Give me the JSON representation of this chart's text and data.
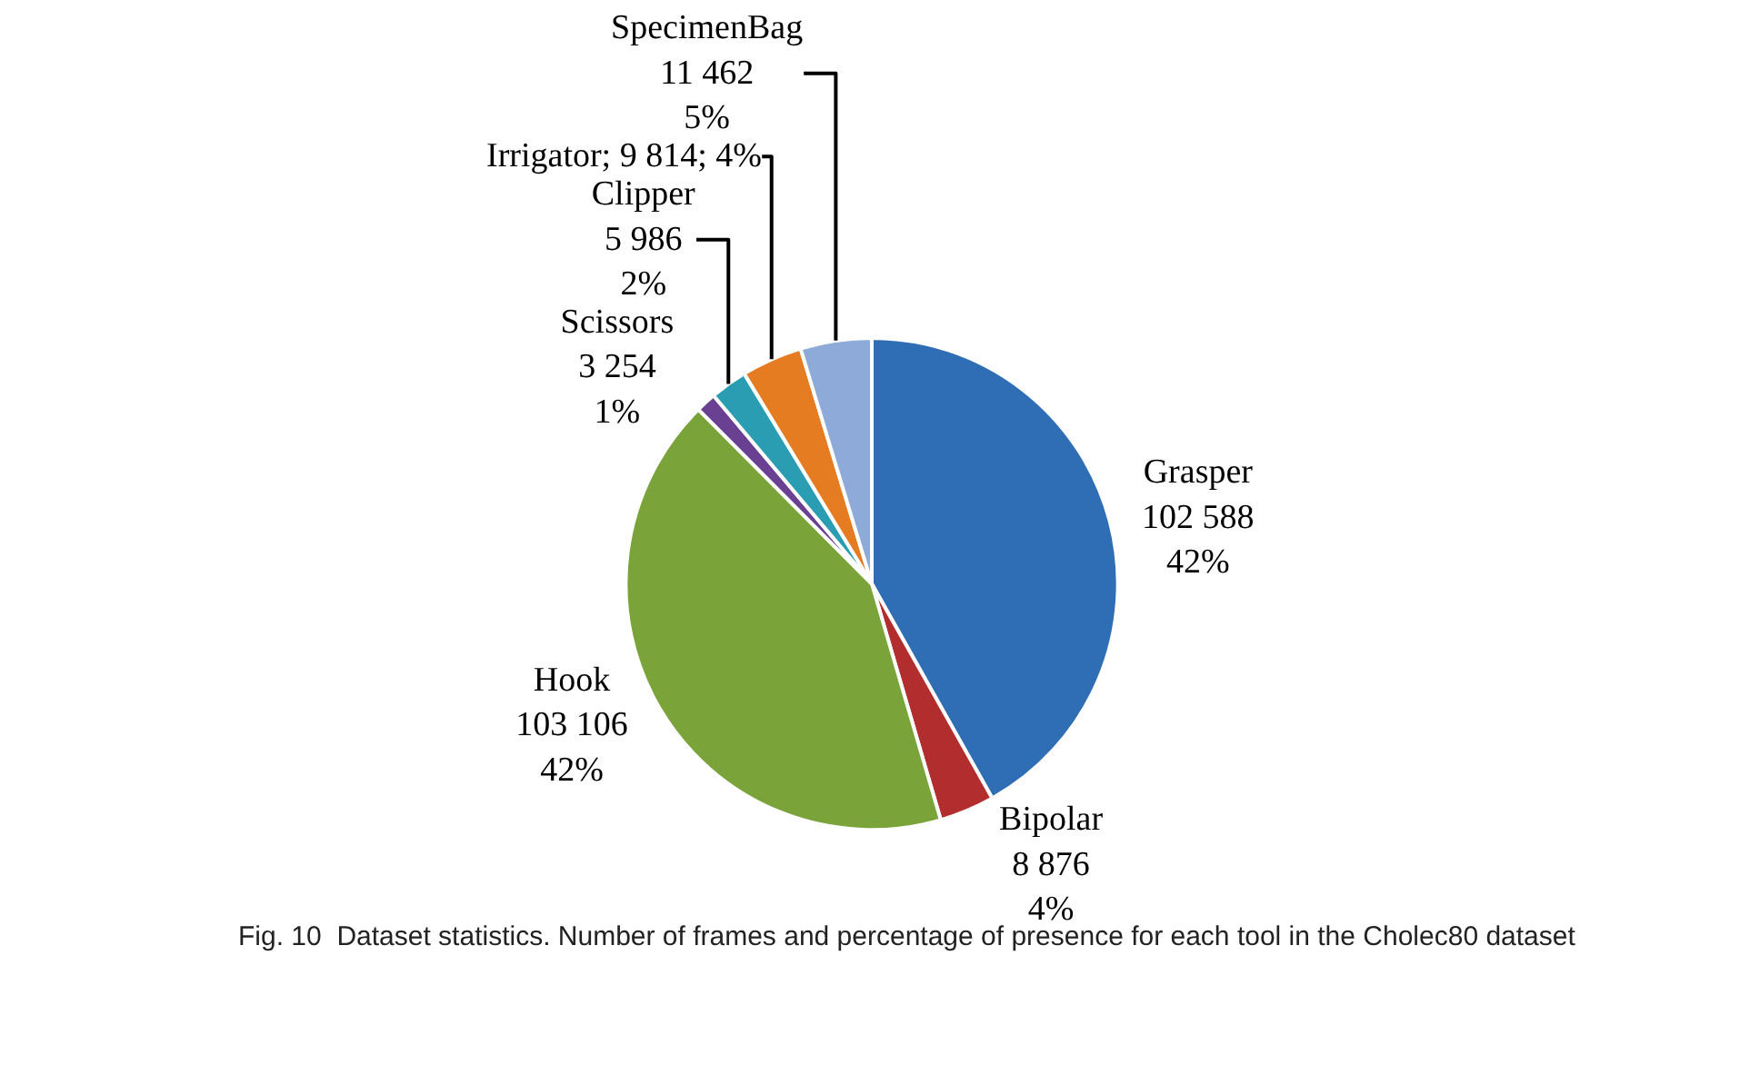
{
  "chart_data": {
    "type": "pie",
    "categories": [
      "Grasper",
      "Bipolar",
      "Hook",
      "Scissors",
      "Clipper",
      "Irrigator",
      "SpecimenBag"
    ],
    "values": [
      102588,
      8876,
      103106,
      3254,
      5986,
      9814,
      11462
    ],
    "value_labels": [
      "\n102 588\n42%",
      "\n8 876\n4%",
      "\n103 106\n42%",
      "\n3 254\n1%",
      "\n5 986\n2%",
      "; 9 814; 4%",
      "\n11 462\n5%"
    ],
    "colors": [
      "#2f6db5",
      "#b22e2e",
      "#7aa43a",
      "#6a4192",
      "#2b9db3",
      "#e57c22",
      "#8eaad8"
    ],
    "legend": false,
    "annotations": [
      "Fig. 10  Dataset statistics. Number of frames and percentage of presence for each tool in the Cholec80 dataset"
    ]
  }
}
